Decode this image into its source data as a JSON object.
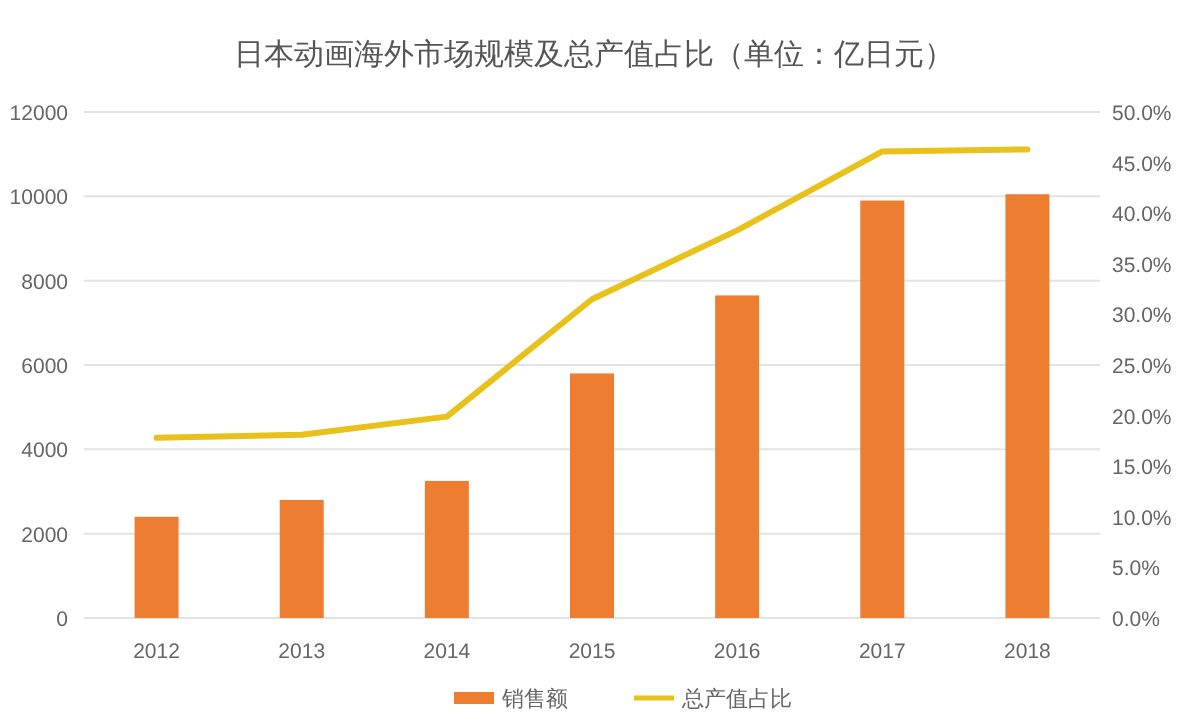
{
  "chart_data": {
    "type": "bar",
    "title": "日本动画海外市场规模及总产值占比（单位：亿日元）",
    "categories": [
      "2012",
      "2013",
      "2014",
      "2015",
      "2016",
      "2017",
      "2018"
    ],
    "series": [
      {
        "name": "销售额",
        "color": "#ed7d31",
        "values": [
          2400,
          2800,
          3250,
          5800,
          7650,
          9900,
          10050
        ]
      },
      {
        "name": "总产值占比",
        "type": "line",
        "axis": "y2",
        "color": "#e8c21a",
        "values": [
          17.8,
          18.1,
          19.9,
          31.5,
          38.3,
          46.1,
          46.3
        ]
      }
    ],
    "ylim": [
      0,
      12000
    ],
    "yticks": [
      0,
      2000,
      4000,
      6000,
      8000,
      10000,
      12000
    ],
    "y2lim": [
      0,
      50
    ],
    "y2ticks": [
      {
        "value": 0,
        "label": "0.0%"
      },
      {
        "value": 5,
        "label": "5.0%"
      },
      {
        "value": 10,
        "label": "10.0%"
      },
      {
        "value": 15,
        "label": "15.0%"
      },
      {
        "value": 20,
        "label": "20.0%"
      },
      {
        "value": 25,
        "label": "25.0%"
      },
      {
        "value": 30,
        "label": "30.0%"
      },
      {
        "value": 35,
        "label": "35.0%"
      },
      {
        "value": 40,
        "label": "40.0%"
      },
      {
        "value": 45,
        "label": "45.0%"
      },
      {
        "value": 50,
        "label": "50.0%"
      }
    ],
    "grid": "y",
    "legend": "bottom",
    "marker": "none",
    "line_style": "solid"
  }
}
